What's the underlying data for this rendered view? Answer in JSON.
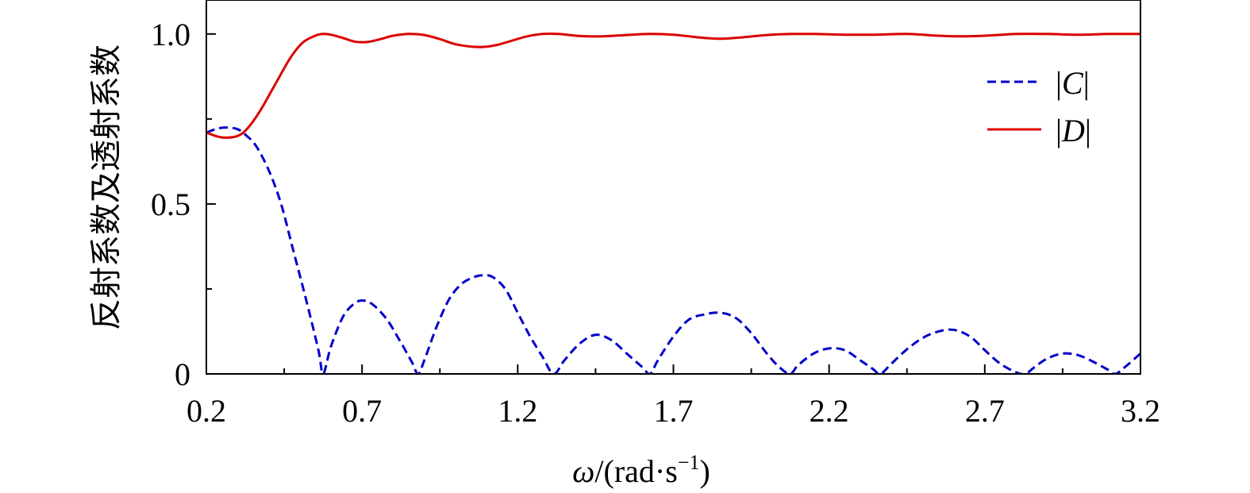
{
  "chart_data": {
    "type": "line",
    "xlabel": {
      "omega": "ω",
      "rest": "/(rad·s",
      "exponent": "−1",
      "close": ")"
    },
    "ylabel": "反射系数及透射系数",
    "xlim": [
      0.2,
      3.2
    ],
    "ylim": [
      0,
      1.1
    ],
    "xticks": [
      {
        "value": 0.2,
        "label": "0.2"
      },
      {
        "value": 0.7,
        "label": "0.7"
      },
      {
        "value": 1.2,
        "label": "1.2"
      },
      {
        "value": 1.7,
        "label": "1.7"
      },
      {
        "value": 2.2,
        "label": "2.2"
      },
      {
        "value": 2.7,
        "label": "2.7"
      },
      {
        "value": 3.2,
        "label": "3.2"
      }
    ],
    "yticks": [
      {
        "value": 0,
        "label": "0"
      },
      {
        "value": 0.5,
        "label": "0.5"
      },
      {
        "value": 1.0,
        "label": "1.0"
      }
    ],
    "legend_position": "top-right",
    "series": [
      {
        "name": "|C|",
        "legend_bar_left": "|",
        "legend_letter": "C",
        "legend_bar_right": "|",
        "color": "#0000cc",
        "style": "dashed",
        "x": [
          0.2,
          0.23,
          0.26,
          0.3,
          0.33,
          0.36,
          0.4,
          0.44,
          0.48,
          0.52,
          0.56,
          0.575,
          0.6,
          0.64,
          0.68,
          0.71,
          0.74,
          0.78,
          0.82,
          0.86,
          0.88,
          0.9,
          0.94,
          0.98,
          1.02,
          1.06,
          1.09,
          1.12,
          1.16,
          1.2,
          1.24,
          1.28,
          1.315,
          1.35,
          1.4,
          1.45,
          1.5,
          1.55,
          1.6,
          1.625,
          1.65,
          1.7,
          1.75,
          1.8,
          1.85,
          1.9,
          1.95,
          2.0,
          2.04,
          2.075,
          2.1,
          2.15,
          2.2,
          2.25,
          2.3,
          2.34,
          2.365,
          2.4,
          2.46,
          2.52,
          2.58,
          2.62,
          2.66,
          2.7,
          2.75,
          2.8,
          2.83,
          2.86,
          2.9,
          2.95,
          3.0,
          3.05,
          3.1,
          3.12,
          3.15,
          3.2
        ],
        "y": [
          0.71,
          0.72,
          0.725,
          0.72,
          0.7,
          0.67,
          0.6,
          0.5,
          0.36,
          0.22,
          0.07,
          0.0,
          0.08,
          0.17,
          0.21,
          0.215,
          0.2,
          0.16,
          0.1,
          0.035,
          0.0,
          0.04,
          0.14,
          0.22,
          0.265,
          0.285,
          0.29,
          0.285,
          0.25,
          0.18,
          0.11,
          0.05,
          0.0,
          0.04,
          0.09,
          0.115,
          0.1,
          0.06,
          0.02,
          0.0,
          0.04,
          0.11,
          0.16,
          0.175,
          0.18,
          0.165,
          0.12,
          0.06,
          0.02,
          0.0,
          0.025,
          0.06,
          0.075,
          0.07,
          0.04,
          0.015,
          0.0,
          0.03,
          0.08,
          0.115,
          0.13,
          0.125,
          0.105,
          0.07,
          0.03,
          0.005,
          0.0,
          0.02,
          0.045,
          0.06,
          0.055,
          0.035,
          0.01,
          0.0,
          0.02,
          0.06
        ]
      },
      {
        "name": "|D|",
        "legend_bar_left": "|",
        "legend_letter": "D",
        "legend_bar_right": "|",
        "color": "#dd0000",
        "style": "solid",
        "x": [
          0.2,
          0.23,
          0.26,
          0.3,
          0.33,
          0.37,
          0.42,
          0.47,
          0.51,
          0.55,
          0.575,
          0.6,
          0.64,
          0.68,
          0.72,
          0.76,
          0.8,
          0.85,
          0.9,
          0.95,
          1.0,
          1.05,
          1.09,
          1.13,
          1.18,
          1.23,
          1.28,
          1.33,
          1.4,
          1.47,
          1.55,
          1.62,
          1.7,
          1.78,
          1.85,
          1.92,
          2.0,
          2.08,
          2.15,
          2.25,
          2.35,
          2.45,
          2.55,
          2.62,
          2.7,
          2.8,
          2.9,
          3.0,
          3.1,
          3.2
        ],
        "y": [
          0.71,
          0.7,
          0.695,
          0.7,
          0.72,
          0.77,
          0.85,
          0.93,
          0.975,
          0.995,
          1.0,
          0.998,
          0.988,
          0.977,
          0.977,
          0.985,
          0.995,
          1.0,
          0.997,
          0.985,
          0.97,
          0.963,
          0.962,
          0.967,
          0.98,
          0.993,
          1.0,
          1.0,
          0.994,
          0.993,
          0.997,
          1.0,
          0.998,
          0.99,
          0.986,
          0.99,
          0.997,
          1.0,
          1.0,
          0.998,
          0.998,
          1.0,
          0.995,
          0.993,
          0.995,
          1.0,
          1.0,
          0.998,
          1.0,
          1.0
        ]
      }
    ]
  }
}
